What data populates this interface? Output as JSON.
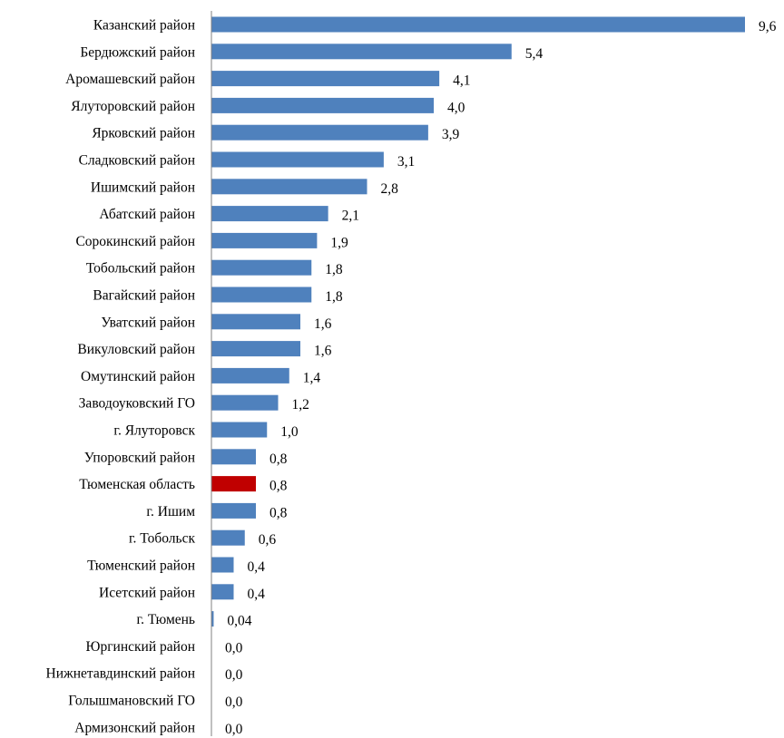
{
  "chart_data": {
    "type": "bar",
    "orientation": "horizontal",
    "title": "",
    "xlabel": "",
    "ylabel": "",
    "grid": false,
    "legend": "none",
    "xlim": [
      0,
      9.6
    ],
    "categories": [
      "Казанский район",
      "Бердюжский район",
      "Аромашевский район",
      "Ялуторовский район",
      "Ярковский район",
      "Сладковский район",
      "Ишимский район",
      "Абатский район",
      "Сорокинский район",
      "Тобольский район",
      "Вагайский район",
      "Уватский район",
      "Викуловский район",
      "Омутинский район",
      "Заводоуковский ГО",
      "г. Ялуторовск",
      "Упоровский район",
      "Тюменская область",
      "г. Ишим",
      "г. Тобольск",
      "Тюменский район",
      "Исетский район",
      "г. Тюмень",
      "Юргинский район",
      "Нижнетавдинский район",
      "Голышмановский ГО",
      "Армизонский район"
    ],
    "values": [
      9.6,
      5.4,
      4.1,
      4.0,
      3.9,
      3.1,
      2.8,
      2.1,
      1.9,
      1.8,
      1.8,
      1.6,
      1.6,
      1.4,
      1.2,
      1.0,
      0.8,
      0.8,
      0.8,
      0.6,
      0.4,
      0.4,
      0.04,
      0.0,
      0.0,
      0.0,
      0.0
    ],
    "value_labels": [
      "9,6",
      "5,4",
      "4,1",
      "4,0",
      "3,9",
      "3,1",
      "2,8",
      "2,1",
      "1,9",
      "1,8",
      "1,8",
      "1,6",
      "1,6",
      "1,4",
      "1,2",
      "1,0",
      "0,8",
      "0,8",
      "0,8",
      "0,6",
      "0,4",
      "0,4",
      "0,04",
      "0,0",
      "0,0",
      "0,0",
      "0,0"
    ],
    "colors": {
      "default": "#4f81bd",
      "highlight": "#c00000"
    },
    "highlight_category": "Тюменская область"
  }
}
